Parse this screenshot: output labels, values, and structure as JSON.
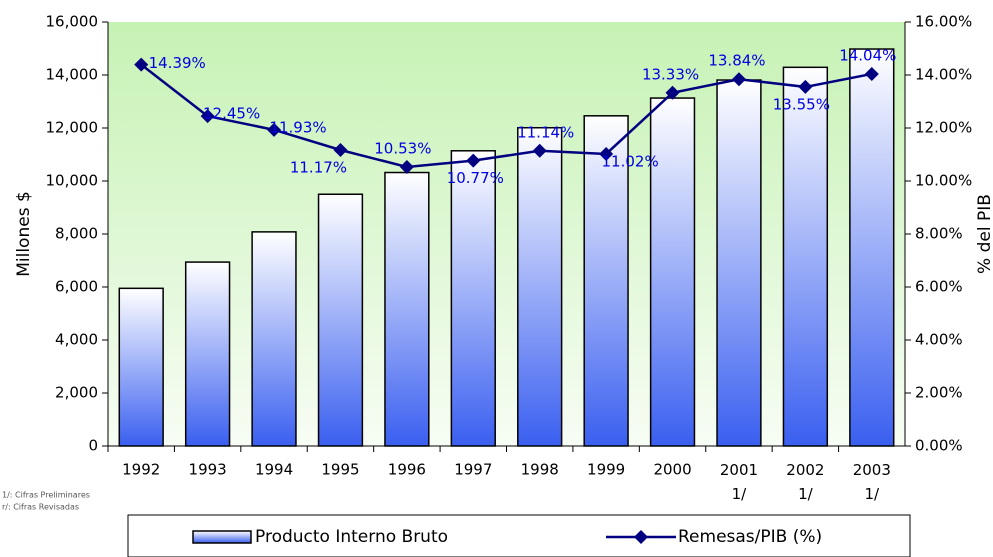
{
  "chart_data": {
    "type": "bar_line",
    "categories": [
      "1992",
      "1993",
      "1994",
      "1995",
      "1996",
      "1997",
      "1998",
      "1999",
      "2000",
      "2001 1/",
      "2002 1/",
      "2003 1/"
    ],
    "series": [
      {
        "name": "Producto Interno Bruto",
        "type": "bar",
        "color": "#3a5ff0",
        "values": [
          5950,
          6940,
          8080,
          9500,
          10320,
          11140,
          12010,
          12460,
          13130,
          13810,
          14290,
          14980
        ]
      },
      {
        "name": "Remesas/PIB (%)",
        "type": "line",
        "axis": "y2",
        "color": "#000080",
        "values": [
          14.39,
          12.45,
          11.93,
          11.17,
          10.53,
          10.77,
          11.14,
          11.02,
          13.33,
          13.84,
          13.55,
          14.04
        ],
        "value_labels": [
          "14.39%",
          "12.45%",
          "11.93%",
          "11.17%",
          "10.53%",
          "10.77%",
          "11.14%",
          "11.02%",
          "13.33%",
          "13.84%",
          "13.55%",
          "14.04%"
        ]
      }
    ],
    "ylabel": "Millones $",
    "y2label": "% del PIB",
    "ylim": [
      0,
      16000
    ],
    "yticks": [
      {
        "value": 0,
        "label": "0"
      },
      {
        "value": 2000,
        "label": "2,000"
      },
      {
        "value": 4000,
        "label": "4,000"
      },
      {
        "value": 6000,
        "label": "6,000"
      },
      {
        "value": 8000,
        "label": "8,000"
      },
      {
        "value": 10000,
        "label": "10,000"
      },
      {
        "value": 12000,
        "label": "12,000"
      },
      {
        "value": 14000,
        "label": "14,000"
      },
      {
        "value": 16000,
        "label": "16,000"
      }
    ],
    "y2lim": [
      0,
      16
    ],
    "y2ticks": [
      {
        "value": 0,
        "label": "0.00%"
      },
      {
        "value": 2,
        "label": "2.00%"
      },
      {
        "value": 4,
        "label": "4.00%"
      },
      {
        "value": 6,
        "label": "6.00%"
      },
      {
        "value": 8,
        "label": "8.00%"
      },
      {
        "value": 10,
        "label": "10.00%"
      },
      {
        "value": 12,
        "label": "12.00%"
      },
      {
        "value": 14,
        "label": "14.00%"
      },
      {
        "value": 16,
        "label": "16.00%"
      }
    ],
    "notes": [
      "1/: Cifras Preliminares",
      "r/: Cifras Revisadas"
    ],
    "legend": "bottom"
  }
}
